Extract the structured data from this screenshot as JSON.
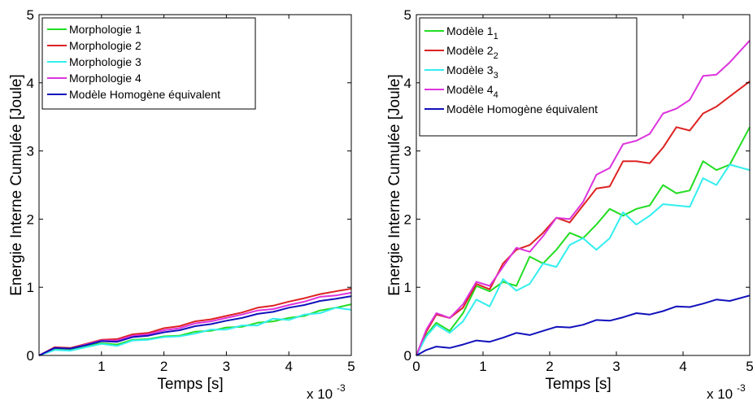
{
  "chart_data": [
    {
      "type": "line",
      "xlabel": "Temps [s]",
      "ylabel": "Energie Interne Cumulée [Joule]",
      "x_multiplier": "x 10",
      "x_multiplier_exp": "-3",
      "xlim": [
        0,
        5
      ],
      "ylim": [
        0,
        5
      ],
      "xticks": [
        1,
        2,
        3,
        4,
        5
      ],
      "yticks": [
        0,
        1,
        2,
        3,
        4,
        5
      ],
      "legend_position": "top-left",
      "series": [
        {
          "name": "Morphologie 1",
          "color": "#22dd22",
          "x": [
            0,
            0.25,
            0.5,
            0.75,
            1.0,
            1.25,
            1.5,
            1.75,
            2.0,
            2.25,
            2.5,
            2.75,
            3.0,
            3.25,
            3.5,
            3.75,
            4.0,
            4.25,
            4.5,
            4.75,
            5.0
          ],
          "y": [
            0,
            0.1,
            0.09,
            0.14,
            0.18,
            0.16,
            0.23,
            0.24,
            0.28,
            0.29,
            0.35,
            0.36,
            0.41,
            0.42,
            0.48,
            0.5,
            0.55,
            0.58,
            0.66,
            0.7,
            0.75
          ]
        },
        {
          "name": "Morphologie 2",
          "color": "#dd2222",
          "x": [
            0,
            0.25,
            0.5,
            0.75,
            1.0,
            1.25,
            1.5,
            1.75,
            2.0,
            2.25,
            2.5,
            2.75,
            3.0,
            3.25,
            3.5,
            3.75,
            4.0,
            4.25,
            4.5,
            4.75,
            5.0
          ],
          "y": [
            0,
            0.12,
            0.11,
            0.17,
            0.23,
            0.24,
            0.31,
            0.33,
            0.4,
            0.43,
            0.5,
            0.53,
            0.58,
            0.63,
            0.7,
            0.73,
            0.79,
            0.84,
            0.9,
            0.94,
            0.98
          ]
        },
        {
          "name": "Morphologie 3",
          "color": "#33eeee",
          "x": [
            0,
            0.25,
            0.5,
            0.75,
            1.0,
            1.25,
            1.5,
            1.75,
            2.0,
            2.25,
            2.5,
            2.75,
            3.0,
            3.25,
            3.5,
            3.75,
            4.0,
            4.25,
            4.5,
            4.75,
            5.0
          ],
          "y": [
            0,
            0.08,
            0.07,
            0.12,
            0.17,
            0.14,
            0.22,
            0.23,
            0.27,
            0.28,
            0.32,
            0.38,
            0.38,
            0.44,
            0.44,
            0.54,
            0.52,
            0.6,
            0.62,
            0.7,
            0.67
          ]
        },
        {
          "name": "Morphologie 4",
          "color": "#dd33dd",
          "x": [
            0,
            0.25,
            0.5,
            0.75,
            1.0,
            1.25,
            1.5,
            1.75,
            2.0,
            2.25,
            2.5,
            2.75,
            3.0,
            3.25,
            3.5,
            3.75,
            4.0,
            4.25,
            4.5,
            4.75,
            5.0
          ],
          "y": [
            0,
            0.11,
            0.1,
            0.16,
            0.22,
            0.22,
            0.29,
            0.31,
            0.37,
            0.4,
            0.47,
            0.5,
            0.55,
            0.6,
            0.66,
            0.68,
            0.74,
            0.79,
            0.86,
            0.88,
            0.92
          ]
        },
        {
          "name": "Modèle Homogène équivalent",
          "color": "#1111bb",
          "x": [
            0,
            0.25,
            0.5,
            0.75,
            1.0,
            1.25,
            1.5,
            1.75,
            2.0,
            2.25,
            2.5,
            2.75,
            3.0,
            3.25,
            3.5,
            3.75,
            4.0,
            4.25,
            4.5,
            4.75,
            5.0
          ],
          "y": [
            0,
            0.11,
            0.1,
            0.15,
            0.21,
            0.2,
            0.27,
            0.29,
            0.34,
            0.37,
            0.43,
            0.46,
            0.51,
            0.55,
            0.61,
            0.64,
            0.7,
            0.74,
            0.8,
            0.83,
            0.87
          ]
        }
      ]
    },
    {
      "type": "line",
      "xlabel": "Temps [s]",
      "ylabel": "Energie Interne Cumulée [Joule]",
      "x_multiplier": "x 10",
      "x_multiplier_exp": "-3",
      "xlim": [
        0,
        5
      ],
      "ylim": [
        0,
        5
      ],
      "xticks": [
        0,
        1,
        2,
        3,
        4,
        5
      ],
      "yticks": [
        0,
        1,
        2,
        3,
        4,
        5
      ],
      "legend_position": "top-left",
      "series": [
        {
          "name": "Modèle 1",
          "name_sub": "1",
          "color": "#22dd22",
          "x": [
            0,
            0.15,
            0.3,
            0.5,
            0.7,
            0.9,
            1.1,
            1.3,
            1.5,
            1.7,
            1.9,
            2.1,
            2.3,
            2.5,
            2.7,
            2.9,
            3.1,
            3.3,
            3.5,
            3.7,
            3.9,
            4.1,
            4.3,
            4.5,
            4.7,
            5.0
          ],
          "y": [
            0,
            0.3,
            0.48,
            0.36,
            0.62,
            1.02,
            0.94,
            1.08,
            1.02,
            1.45,
            1.35,
            1.55,
            1.8,
            1.72,
            1.92,
            2.15,
            2.05,
            2.15,
            2.2,
            2.5,
            2.38,
            2.42,
            2.85,
            2.72,
            2.8,
            3.35
          ]
        },
        {
          "name": "Modèle 2",
          "name_sub": "2",
          "color": "#dd2222",
          "x": [
            0,
            0.15,
            0.3,
            0.5,
            0.7,
            0.9,
            1.1,
            1.3,
            1.5,
            1.7,
            1.9,
            2.1,
            2.3,
            2.5,
            2.7,
            2.9,
            3.1,
            3.3,
            3.5,
            3.7,
            3.9,
            4.1,
            4.3,
            4.5,
            4.7,
            5.0
          ],
          "y": [
            0,
            0.35,
            0.6,
            0.55,
            0.7,
            1.05,
            0.97,
            1.35,
            1.55,
            1.62,
            1.8,
            2.02,
            1.95,
            2.2,
            2.45,
            2.48,
            2.85,
            2.85,
            2.82,
            3.05,
            3.35,
            3.3,
            3.55,
            3.65,
            3.8,
            4.02
          ]
        },
        {
          "name": "Modèle 3",
          "name_sub": "3",
          "color": "#33eeee",
          "x": [
            0,
            0.15,
            0.3,
            0.5,
            0.7,
            0.9,
            1.1,
            1.3,
            1.5,
            1.7,
            1.9,
            2.1,
            2.3,
            2.5,
            2.7,
            2.9,
            3.1,
            3.3,
            3.5,
            3.7,
            3.9,
            4.1,
            4.3,
            4.5,
            4.7,
            5.0
          ],
          "y": [
            0,
            0.28,
            0.45,
            0.33,
            0.5,
            0.82,
            0.72,
            1.12,
            0.95,
            1.05,
            1.35,
            1.3,
            1.62,
            1.72,
            1.55,
            1.72,
            2.1,
            1.92,
            2.05,
            2.22,
            2.2,
            2.18,
            2.6,
            2.5,
            2.8,
            2.72
          ]
        },
        {
          "name": "Modèle 4",
          "name_sub": "4",
          "color": "#dd33dd",
          "x": [
            0,
            0.15,
            0.3,
            0.5,
            0.7,
            0.9,
            1.1,
            1.3,
            1.5,
            1.7,
            1.9,
            2.1,
            2.3,
            2.5,
            2.7,
            2.9,
            3.1,
            3.3,
            3.5,
            3.7,
            3.9,
            4.1,
            4.3,
            4.5,
            4.7,
            5.0
          ],
          "y": [
            0,
            0.38,
            0.62,
            0.55,
            0.75,
            1.08,
            1.02,
            1.3,
            1.58,
            1.52,
            1.75,
            2.02,
            2.0,
            2.25,
            2.65,
            2.75,
            3.1,
            3.15,
            3.25,
            3.55,
            3.62,
            3.75,
            4.1,
            4.12,
            4.3,
            4.62
          ]
        },
        {
          "name": "Modèle Homogène équivalent",
          "name_sub": "",
          "color": "#1111bb",
          "x": [
            0,
            0.15,
            0.3,
            0.5,
            0.7,
            0.9,
            1.1,
            1.3,
            1.5,
            1.7,
            1.9,
            2.1,
            2.3,
            2.5,
            2.7,
            2.9,
            3.1,
            3.3,
            3.5,
            3.7,
            3.9,
            4.1,
            4.3,
            4.5,
            4.7,
            5.0
          ],
          "y": [
            0,
            0.08,
            0.13,
            0.11,
            0.16,
            0.22,
            0.2,
            0.26,
            0.33,
            0.3,
            0.36,
            0.42,
            0.41,
            0.45,
            0.52,
            0.51,
            0.56,
            0.62,
            0.6,
            0.65,
            0.72,
            0.71,
            0.76,
            0.82,
            0.8,
            0.88
          ]
        }
      ]
    }
  ]
}
